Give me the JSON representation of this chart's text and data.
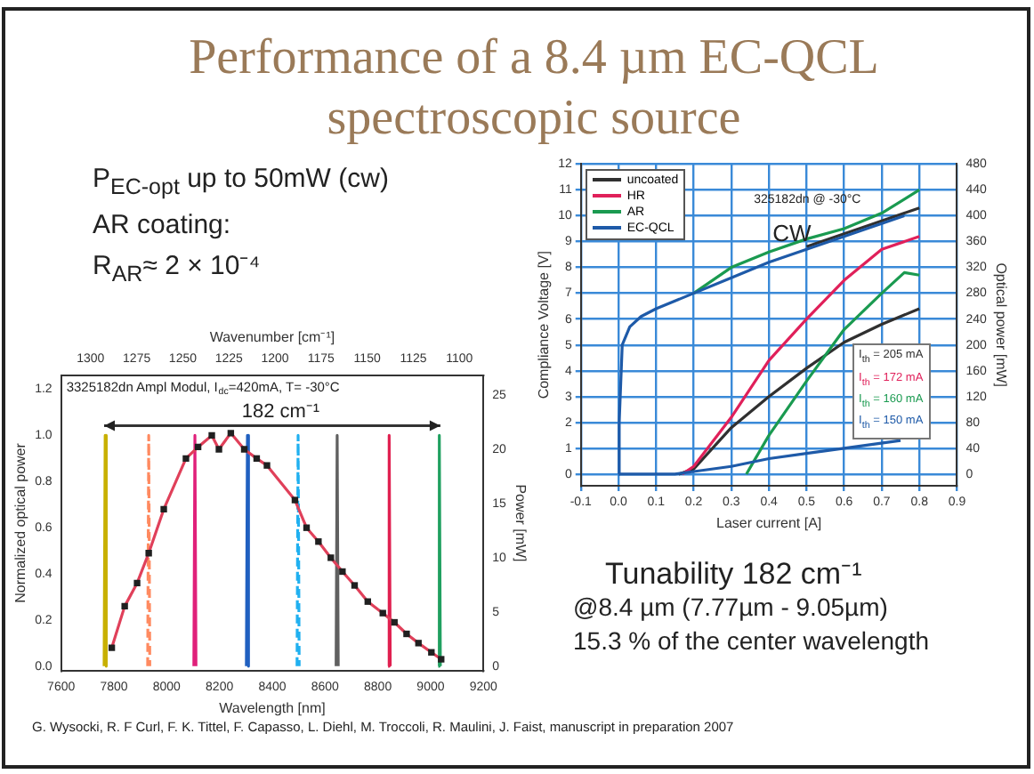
{
  "chart_data": [
    {
      "type": "line",
      "title": "Performance of a 8.4 µm EC-QCL spectroscopic source",
      "xlabel": "Wavelength [nm]",
      "ylabel": "Normalized optical power",
      "y2label": "Power [mW]",
      "x2label": "Wavenumber [cm⁻¹]",
      "xlim": [
        7600,
        9200
      ],
      "xticks": [
        7600,
        7800,
        8000,
        8200,
        8400,
        8600,
        8800,
        9000,
        9200
      ],
      "x2lim": [
        1316,
        1087
      ],
      "x2ticks": [
        1300,
        1275,
        1250,
        1225,
        1200,
        1175,
        1150,
        1125,
        1100
      ],
      "ylim": [
        -0.02,
        1.26
      ],
      "yticks": [
        {
          "value": 0,
          "label": "0.0"
        },
        0.2,
        0.4,
        0.6,
        0.8,
        {
          "value": 1,
          "label": "1.0"
        },
        1.2
      ],
      "y2lim": [
        -0.4,
        26.8
      ],
      "y2ticks": [
        0,
        5,
        10,
        15,
        20,
        25
      ],
      "legend": false,
      "annotations": [
        "3325182dn Ampl Modul, I$_{dc}$=420mA, T= -30°C",
        "182 cm⁻¹",
        "P$_{EC-opt}$ up to 50mW (cw)",
        "AR coating:",
        "R$_{AR}$≈ 2 × 10⁻⁴"
      ],
      "series": [
        {
          "type": "line",
          "color": "#c8b000",
          "x": [
            7763,
            7767,
            7771
          ],
          "values": [
            0,
            1.0,
            0
          ]
        },
        {
          "type": "line",
          "color": "#ff8a60",
          "line_style": "dashed",
          "x": [
            7928,
            7932,
            7936
          ],
          "values": [
            0,
            1.0,
            0
          ]
        },
        {
          "type": "line",
          "color": "#e0207a",
          "x": [
            8103,
            8107,
            8111
          ],
          "values": [
            0,
            1.0,
            0
          ]
        },
        {
          "type": "line",
          "color": "#2060c0",
          "x": [
            8302,
            8306,
            8310
          ],
          "values": [
            0,
            1.0,
            0
          ]
        },
        {
          "type": "line",
          "color": "#20b0f0",
          "line_style": "dashed",
          "x": [
            8494,
            8498,
            8502
          ],
          "values": [
            0,
            1.0,
            0
          ]
        },
        {
          "type": "line",
          "color": "#606060",
          "x": [
            8642,
            8646,
            8650
          ],
          "values": [
            0,
            1.0,
            0
          ]
        },
        {
          "type": "line",
          "color": "#e02050",
          "x": [
            8839,
            8843,
            8847
          ],
          "values": [
            0,
            1.0,
            0
          ]
        },
        {
          "type": "line",
          "color": "#20a060",
          "x": [
            9029,
            9033,
            9037
          ],
          "values": [
            0,
            1.0,
            0
          ]
        },
        {
          "type": "line",
          "color": "#e0405a",
          "marker": "none",
          "x": [
            7792,
            7841,
            7888,
            7932,
            7989,
            8073,
            8119,
            8171,
            8198,
            8243,
            8294,
            8341,
            8380,
            8486,
            8530,
            8575,
            8622,
            8666,
            8712,
            8762,
            8819,
            8863,
            8909,
            8954,
            9003,
            9040
          ],
          "values": [
            0.08,
            0.26,
            0.36,
            0.49,
            0.68,
            0.9,
            0.95,
            1.0,
            0.94,
            1.01,
            0.94,
            0.9,
            0.87,
            0.72,
            0.6,
            0.54,
            0.47,
            0.41,
            0.35,
            0.28,
            0.23,
            0.19,
            0.14,
            0.1,
            0.06,
            0.03
          ]
        },
        {
          "type": "scatter",
          "color": "#202020",
          "marker": "square",
          "x": [
            7792,
            7841,
            7888,
            7932,
            7989,
            8073,
            8119,
            8171,
            8198,
            8243,
            8294,
            8341,
            8380,
            8486,
            8530,
            8575,
            8622,
            8666,
            8712,
            8762,
            8819,
            8863,
            8909,
            8954,
            9003,
            9040
          ],
          "values": [
            0.08,
            0.26,
            0.36,
            0.49,
            0.68,
            0.9,
            0.95,
            1.0,
            0.94,
            1.01,
            0.94,
            0.9,
            0.87,
            0.72,
            0.6,
            0.54,
            0.47,
            0.41,
            0.35,
            0.28,
            0.23,
            0.19,
            0.14,
            0.1,
            0.06,
            0.03
          ]
        }
      ]
    },
    {
      "type": "line",
      "xlabel": "Laser current [A]",
      "ylabel": "Compliance Voltage [V]",
      "y2label": "Optical power [mW]",
      "xlim": [
        -0.1,
        0.9
      ],
      "xticks": [
        -0.1,
        {
          "value": 0,
          "label": "0.0"
        },
        0.1,
        0.2,
        0.3,
        0.4,
        0.5,
        0.6,
        0.7,
        0.8,
        0.9
      ],
      "ylim": [
        -0.45,
        12
      ],
      "yticks": [
        0,
        1,
        2,
        3,
        4,
        5,
        6,
        7,
        8,
        9,
        10,
        11,
        12
      ],
      "y2lim": [
        -18,
        480
      ],
      "y2ticks": [
        0,
        40,
        80,
        120,
        160,
        200,
        240,
        280,
        320,
        360,
        400,
        440,
        480
      ],
      "grid": true,
      "legend": "top left",
      "annotations": [
        "325182dn @ -30°C",
        "CW",
        "I$_{th}$ = 205 mA",
        "I$_{th}$ = 172 mA",
        "I$_{th}$ = 160 mA",
        "I$_{th}$ = 150 mA",
        "Tunability 182 cm⁻¹",
        "@8.4 µm   (7.77µm - 9.05µm)",
        "15.3 % of the center wavelength",
        "G. Wysocki, R. F Curl, F. K. Tittel, F. Capasso, L. Diehl, M. Troccoli, R. Maulini, J. Faist, manuscript in preparation 2007"
      ],
      "series": [
        {
          "axis": "y2",
          "color": "#303030",
          "x": [
            0.16,
            0.2,
            0.3,
            0.4,
            0.5,
            0.6,
            0.7,
            0.8
          ],
          "values": [
            0,
            8,
            72,
            120,
            164,
            204,
            232,
            256
          ]
        },
        {
          "name": "uncoated",
          "color": "#303030",
          "x": [
            0.5,
            0.6,
            0.7,
            0.8
          ],
          "values": [
            8.8,
            9.3,
            9.8,
            10.3
          ]
        },
        {
          "name": "HR",
          "axis": "y2",
          "color": "#e0205a",
          "x": [
            0.17,
            0.2,
            0.3,
            0.4,
            0.5,
            0.6,
            0.7,
            0.8
          ],
          "values": [
            0,
            12,
            88,
            176,
            240,
            300,
            348,
            368
          ]
        },
        {
          "name": "AR",
          "color": "#1a9a50",
          "x": [
            0.2,
            0.3,
            0.4,
            0.5,
            0.6,
            0.7,
            0.8
          ],
          "values": [
            7.0,
            8.0,
            8.6,
            9.1,
            9.5,
            10.1,
            11.0
          ]
        },
        {
          "name": "EC-QCL",
          "color": "#1e5aa8",
          "x": [
            0,
            0.002,
            0.01,
            0.03,
            0.06,
            0.1,
            0.2,
            0.3,
            0.4,
            0.5,
            0.6,
            0.7,
            0.76
          ],
          "values": [
            0,
            2,
            5,
            5.7,
            6.1,
            6.4,
            7.0,
            7.6,
            8.2,
            8.7,
            9.2,
            9.7,
            10.0
          ]
        },
        {
          "axis": "y2",
          "color": "#1a9a50",
          "x": [
            0.34,
            0.36,
            0.4,
            0.5,
            0.6,
            0.7,
            0.76,
            0.8
          ],
          "values": [
            0,
            20,
            60,
            144,
            224,
            280,
            312,
            308
          ]
        },
        {
          "axis": "y2",
          "color": "#1e5aa8",
          "x": [
            0,
            0.15,
            0.2,
            0.3,
            0.4,
            0.5,
            0.6,
            0.75
          ],
          "values": [
            0,
            0,
            4,
            12,
            24,
            32,
            40,
            52
          ]
        }
      ]
    }
  ]
}
